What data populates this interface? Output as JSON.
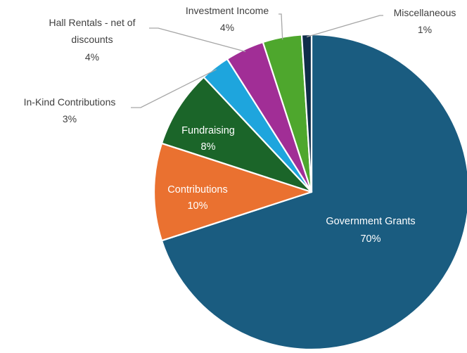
{
  "chart_data": {
    "type": "pie",
    "title": "",
    "start_angle_deg": 0,
    "direction": "clockwise",
    "slices": [
      {
        "label": "Government Grants",
        "value": 70,
        "display": "70%",
        "color": "#1a5c80"
      },
      {
        "label": "Contributions",
        "value": 10,
        "display": "10%",
        "color": "#ea7130"
      },
      {
        "label": "Fundraising",
        "value": 8,
        "display": "8%",
        "color": "#1b6529"
      },
      {
        "label": "In-Kind Contributions",
        "value": 3,
        "display": "3%",
        "color": "#1ea5dd"
      },
      {
        "label": "Hall Rentals  - net of discounts",
        "label_lines": [
          "Hall Rentals  - net of",
          "discounts"
        ],
        "value": 4,
        "display": "4%",
        "color": "#a12e96"
      },
      {
        "label": "Investment Income",
        "value": 4,
        "display": "4%",
        "color": "#4ea72d"
      },
      {
        "label": "Miscellaneous",
        "value": 1,
        "display": "1%",
        "color": "#0f2d4a"
      }
    ],
    "legend": "none",
    "data_labels": "category and percentage"
  }
}
